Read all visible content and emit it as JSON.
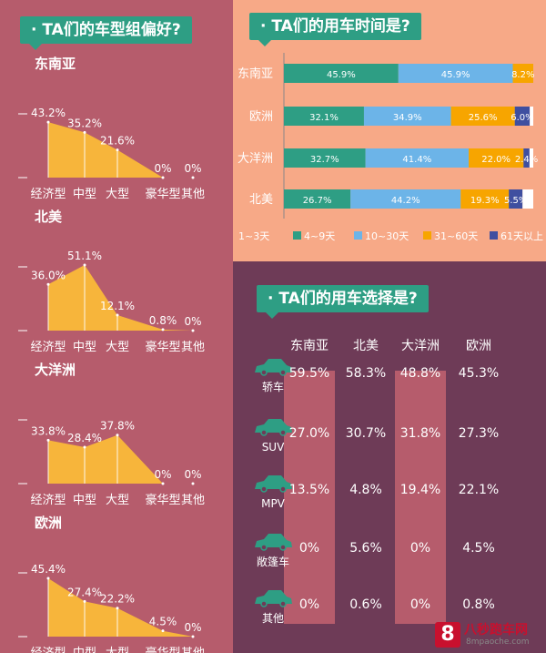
{
  "left": {
    "title": "TA们的车型组偏好?",
    "categories": [
      "经济型",
      "中型",
      "大型",
      "豪华型",
      "其他"
    ]
  },
  "top_right": {
    "title": "TA们的用车时间是?",
    "legend": [
      "1~3天",
      "4~9天",
      "10~30天",
      "31~60天",
      "61天以上"
    ]
  },
  "bottom_right": {
    "title": "TA们的用车选择是?",
    "regions": [
      "东南亚",
      "北美",
      "大洋洲",
      "欧洲"
    ],
    "car_types": [
      {
        "label": "轿车",
        "icon": "sedan-icon"
      },
      {
        "label": "SUV",
        "icon": "suv-icon"
      },
      {
        "label": "MPV",
        "icon": "mpv-icon"
      },
      {
        "label": "敞篷车",
        "icon": "convertible-icon"
      },
      {
        "label": "其他",
        "icon": "car-other-icon"
      }
    ],
    "values": [
      [
        "59.5%",
        "58.3%",
        "48.8%",
        "45.3%"
      ],
      [
        "27.0%",
        "30.7%",
        "31.8%",
        "27.3%"
      ],
      [
        "13.5%",
        "4.8%",
        "19.4%",
        "22.1%"
      ],
      [
        "0%",
        "5.6%",
        "0%",
        "4.5%"
      ],
      [
        "0%",
        "0.6%",
        "0%",
        "0.8%"
      ]
    ]
  },
  "watermark": {
    "logo": "8",
    "name": "八秒跑车网",
    "url": "8mpaoche.com"
  },
  "colors": {
    "left_bg": "#b65c6c",
    "top_right_bg": "#f7a987",
    "bottom_right_bg": "#6e3b57",
    "area_fill": "#f7b53b",
    "header_green": "#2e9e84",
    "seg_1_3": "#2e9e84",
    "seg_4_9": "#2e9e84",
    "seg_10_30": "#6cb4e8",
    "seg_31_60": "#f7a500",
    "seg_61": "#3f4fa0"
  },
  "chart_data": [
    {
      "type": "area",
      "title": "东南亚",
      "categories": [
        "经济型",
        "中型",
        "大型",
        "豪华型",
        "其他"
      ],
      "values": [
        43.2,
        35.2,
        21.6,
        0,
        0
      ],
      "labels": [
        "43.2%",
        "35.2%",
        "21.6%",
        "0%",
        "0%"
      ]
    },
    {
      "type": "area",
      "title": "北美",
      "categories": [
        "经济型",
        "中型",
        "大型",
        "豪华型",
        "其他"
      ],
      "values": [
        36.0,
        51.1,
        12.1,
        0.8,
        0
      ],
      "labels": [
        "36.0%",
        "51.1%",
        "12.1%",
        "0.8%",
        "0%"
      ]
    },
    {
      "type": "area",
      "title": "大洋洲",
      "categories": [
        "经济型",
        "中型",
        "大型",
        "豪华型",
        "其他"
      ],
      "values": [
        33.8,
        28.4,
        37.8,
        0,
        0
      ],
      "labels": [
        "33.8%",
        "28.4%",
        "37.8%",
        "0%",
        "0%"
      ]
    },
    {
      "type": "area",
      "title": "欧洲",
      "categories": [
        "经济型",
        "中型",
        "大型",
        "豪华型",
        "其他"
      ],
      "values": [
        45.4,
        27.4,
        22.2,
        4.5,
        0
      ],
      "labels": [
        "45.4%",
        "27.4%",
        "22.2%",
        "4.5%",
        "0%"
      ]
    },
    {
      "type": "bar",
      "orientation": "horizontal-stacked",
      "categories": [
        "东南亚",
        "欧洲",
        "大洋洲",
        "北美"
      ],
      "series": [
        {
          "name": "4~9天",
          "values": [
            45.9,
            32.1,
            32.7,
            26.7
          ],
          "labels": [
            "45.9%",
            "32.1%",
            "32.7%",
            "26.7%"
          ]
        },
        {
          "name": "10~30天",
          "values": [
            45.9,
            34.9,
            41.4,
            44.2
          ],
          "labels": [
            "45.9%",
            "34.9%",
            "41.4%",
            "44.2%"
          ]
        },
        {
          "name": "31~60天",
          "values": [
            8.2,
            25.6,
            22.0,
            19.3
          ],
          "labels": [
            "8.2%",
            "25.6%",
            "22.0%",
            "19.3%"
          ]
        },
        {
          "name": "61天以上",
          "values": [
            0,
            6.0,
            2.4,
            5.5
          ],
          "labels": [
            "",
            "6.0%",
            "2.4%",
            "5.5%"
          ]
        },
        {
          "values": [
            0,
            1.4,
            1.5,
            4.3
          ],
          "labels": [
            "",
            "",
            "",
            ""
          ]
        }
      ],
      "legend": [
        "1~3天",
        "4~9天",
        "10~30天",
        "31~60天",
        "61天以上"
      ],
      "legend_position": "bottom"
    },
    {
      "type": "table",
      "columns": [
        "东南亚",
        "北美",
        "大洋洲",
        "欧洲"
      ],
      "rows": [
        "轿车",
        "SUV",
        "MPV",
        "敞篷车",
        "其他"
      ],
      "values": [
        [
          59.5,
          58.3,
          48.8,
          45.3
        ],
        [
          27.0,
          30.7,
          31.8,
          27.3
        ],
        [
          13.5,
          4.8,
          19.4,
          22.1
        ],
        [
          0,
          5.6,
          0,
          4.5
        ],
        [
          0,
          0.6,
          0,
          0.8
        ]
      ]
    }
  ]
}
